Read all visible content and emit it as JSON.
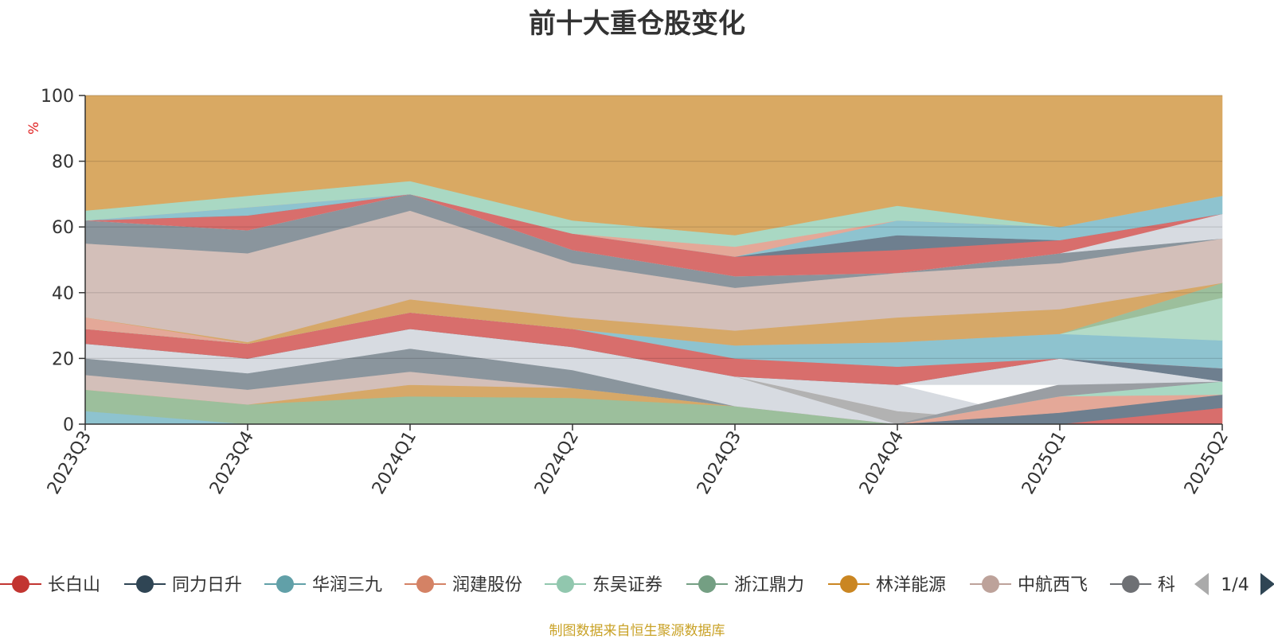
{
  "chart_data": {
    "type": "area",
    "title": "前十大重仓股变化",
    "ylabel": "%",
    "ylim": [
      0,
      100
    ],
    "yticks": [
      0,
      20,
      40,
      60,
      80,
      100
    ],
    "grid": true,
    "categories": [
      "2023Q3",
      "2023Q4",
      "2024Q1",
      "2024Q2",
      "2024Q3",
      "2024Q4",
      "2025Q1",
      "2025Q2"
    ],
    "source": "制图数据来自恒生聚源数据库",
    "bands": [
      {
        "color": "#8ec3cf",
        "lower": [
          0,
          0,
          0,
          0,
          0,
          0,
          0,
          0
        ],
        "upper": [
          4,
          0,
          0,
          0,
          0,
          0,
          0,
          0
        ]
      },
      {
        "color": "#9cbf9c",
        "lower": [
          4,
          0,
          0,
          0,
          0,
          0,
          0,
          0
        ],
        "upper": [
          10.5,
          6,
          8.5,
          8,
          5.5,
          0,
          0,
          0
        ]
      },
      {
        "color": "#d6a868",
        "lower": [
          10.5,
          6,
          8.5,
          8,
          5.5,
          0,
          0,
          0
        ],
        "upper": [
          10.5,
          6,
          12,
          11,
          5.5,
          0,
          0,
          0
        ]
      },
      {
        "color": "#d3bfb9",
        "lower": [
          10.5,
          6,
          12,
          11,
          5.5,
          0,
          0,
          0
        ],
        "upper": [
          15,
          10.5,
          16,
          11,
          5.5,
          0,
          0,
          0
        ]
      },
      {
        "color": "#8a959d",
        "lower": [
          15,
          10.5,
          16,
          11,
          5.5,
          0,
          0,
          0
        ],
        "upper": [
          20,
          15.5,
          23,
          16.5,
          5.5,
          0,
          0,
          0
        ]
      },
      {
        "color": "#d7dbe1",
        "lower": [
          20,
          15.5,
          23,
          16.5,
          5.5,
          0,
          0,
          0
        ],
        "upper": [
          24.5,
          20,
          29,
          23.5,
          14.5,
          0,
          0,
          0
        ]
      },
      {
        "color": "#b2b2b2",
        "lower": [
          24.5,
          20,
          29,
          23.5,
          14.5,
          0,
          0,
          0
        ],
        "upper": [
          24.5,
          20,
          29,
          23.5,
          14.5,
          4,
          0,
          0
        ]
      },
      {
        "color": "#d3bfb9",
        "lower": [
          24.5,
          20,
          29,
          23.5,
          14.5,
          4,
          0,
          0
        ],
        "upper": [
          24.5,
          20,
          29,
          23.5,
          14.5,
          4,
          0,
          0
        ]
      },
      {
        "color": "#d7dbe1",
        "lower": [
          24.5,
          20,
          29,
          23.5,
          14.5,
          4,
          0,
          0
        ],
        "upper": [
          24.5,
          20,
          29,
          23.5,
          14.5,
          12,
          0,
          0
        ]
      },
      {
        "color": "#d86e6c",
        "lower": [
          0,
          0,
          0,
          0,
          0,
          0,
          0,
          0
        ],
        "upper": [
          0,
          0,
          0,
          0,
          0,
          0,
          0,
          5
        ]
      },
      {
        "color": "#6e7f8f",
        "lower": [
          0,
          0,
          0,
          0,
          0,
          0,
          0,
          5
        ],
        "upper": [
          0,
          0,
          0,
          0,
          0,
          0,
          3.5,
          9
        ]
      },
      {
        "color": "#e4a898",
        "lower": [
          0,
          0,
          0,
          0,
          0,
          0,
          3.5,
          9
        ],
        "upper": [
          0,
          0,
          0,
          0,
          0,
          0,
          8.5,
          9
        ]
      },
      {
        "color": "#a9d8c3",
        "lower": [
          0,
          0,
          0,
          0,
          0,
          0,
          8.5,
          9
        ],
        "upper": [
          0,
          0,
          0,
          0,
          0,
          0,
          8.5,
          13
        ]
      },
      {
        "color": "#9a9ea3",
        "lower": [
          0,
          0,
          0,
          0,
          0,
          0,
          8.5,
          13
        ],
        "upper": [
          0,
          0,
          0,
          0,
          0,
          0,
          12,
          13
        ]
      },
      {
        "color": "#d7dbe1",
        "lower": [
          24.5,
          20,
          29,
          23.5,
          14.5,
          12,
          12,
          13
        ],
        "upper": [
          24.5,
          20,
          29,
          23.5,
          14.5,
          12,
          20,
          13
        ]
      },
      {
        "color": "#6e7f8f",
        "lower": [
          24.5,
          20,
          29,
          23.5,
          14.5,
          12,
          20,
          13
        ],
        "upper": [
          24.5,
          20,
          29,
          23.5,
          14.5,
          12,
          20,
          17
        ]
      },
      {
        "color": "#d86e6c",
        "lower": [
          24.5,
          20,
          29,
          23.5,
          14.5,
          12,
          20,
          17
        ],
        "upper": [
          29,
          24.5,
          34,
          29,
          20,
          17.5,
          20,
          17
        ]
      },
      {
        "color": "#8ec3cf",
        "lower": [
          29,
          24.5,
          34,
          29,
          20,
          17.5,
          20,
          17
        ],
        "upper": [
          29,
          24.5,
          34,
          29,
          24,
          25,
          27.5,
          25.5
        ]
      },
      {
        "color": "#b3dbc7",
        "lower": [
          29,
          24.5,
          34,
          29,
          24,
          25,
          27.5,
          25.5
        ],
        "upper": [
          29,
          24.5,
          34,
          29,
          24,
          25,
          27.5,
          38.5
        ]
      },
      {
        "color": "#9cbf9c",
        "lower": [
          29,
          24.5,
          34,
          29,
          24,
          25,
          27.5,
          38.5
        ],
        "upper": [
          29,
          24.5,
          34,
          29,
          24,
          25,
          27.5,
          43
        ]
      },
      {
        "color": "#e4a898",
        "lower": [
          29,
          24.5,
          34,
          29,
          24,
          25,
          27.5,
          43
        ],
        "upper": [
          32.5,
          24.5,
          34,
          29,
          24,
          25,
          27.5,
          43
        ]
      },
      {
        "color": "#d6a868",
        "lower": [
          32.5,
          24.5,
          34,
          29,
          24,
          25,
          27.5,
          43
        ],
        "upper": [
          32.5,
          25,
          38,
          32.5,
          28.5,
          32.5,
          35,
          43
        ]
      },
      {
        "color": "#d3bfb9",
        "lower": [
          32.5,
          25,
          38,
          32.5,
          28.5,
          32.5,
          35,
          43
        ],
        "upper": [
          55,
          52,
          65,
          49,
          41.5,
          46,
          49,
          56.5
        ]
      },
      {
        "color": "#8a959d",
        "lower": [
          55,
          52,
          65,
          49,
          41.5,
          46,
          49,
          56.5
        ],
        "upper": [
          62,
          59,
          70,
          53,
          45,
          46,
          52,
          56.5
        ]
      },
      {
        "color": "#d7dbe1",
        "lower": [
          62,
          59,
          70,
          53,
          45,
          46,
          52,
          56.5
        ],
        "upper": [
          62,
          59,
          70,
          53,
          45,
          46,
          52,
          64
        ]
      },
      {
        "color": "#d86e6c",
        "lower": [
          62,
          59,
          70,
          53,
          45,
          46,
          52,
          64
        ],
        "upper": [
          62,
          63.5,
          70,
          58,
          51,
          53,
          56,
          64
        ]
      },
      {
        "color": "#6e7f8f",
        "lower": [
          62,
          63.5,
          70,
          58,
          51,
          53,
          56,
          64
        ],
        "upper": [
          62,
          63.5,
          70,
          58,
          51,
          57.5,
          56,
          64
        ]
      },
      {
        "color": "#8ec3cf",
        "lower": [
          62,
          63.5,
          70,
          58,
          51,
          57.5,
          56,
          64
        ],
        "upper": [
          62,
          66,
          70,
          58,
          51,
          62,
          60,
          69.5
        ]
      },
      {
        "color": "#e4a898",
        "lower": [
          62,
          66,
          70,
          58,
          51,
          62,
          60,
          69.5
        ],
        "upper": [
          62,
          66,
          70,
          58,
          54,
          62,
          60,
          69.5
        ]
      },
      {
        "color": "#a9d8c3",
        "lower": [
          62,
          66,
          70,
          58,
          54,
          62,
          60,
          69.5
        ],
        "upper": [
          65,
          69.5,
          74,
          62,
          57.5,
          66.5,
          60,
          69.5
        ]
      },
      {
        "color": "#d9a963",
        "lower": [
          65,
          69.5,
          74,
          62,
          57.5,
          66.5,
          60,
          69.5
        ],
        "upper": [
          100,
          100,
          100,
          100,
          100,
          100,
          100,
          100
        ]
      }
    ],
    "legend": {
      "position": "bottom",
      "page": "1/4",
      "entries": [
        {
          "name": "长白山",
          "color": "#c23531"
        },
        {
          "name": "同力日升",
          "color": "#2f4554"
        },
        {
          "name": "华润三九",
          "color": "#61a0a8"
        },
        {
          "name": "润建股份",
          "color": "#d48265"
        },
        {
          "name": "东吴证券",
          "color": "#91c7ae"
        },
        {
          "name": "浙江鼎力",
          "color": "#749f83"
        },
        {
          "name": "林洋能源",
          "color": "#ca8622"
        },
        {
          "name": "中航西飞",
          "color": "#bda29a"
        },
        {
          "name": "科",
          "color": "#6e7074"
        }
      ]
    }
  }
}
